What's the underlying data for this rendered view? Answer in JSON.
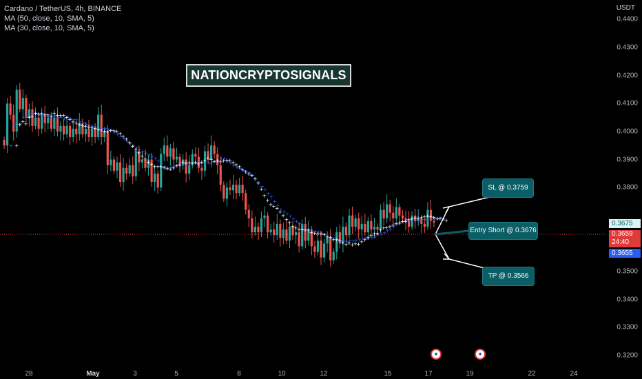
{
  "legend": {
    "title": "Cardano / TetherUS, 4h, BINANCE",
    "ma1": "MA (50, close, 10, SMA, 5)",
    "ma2": "MA (30, close, 10, SMA, 5)"
  },
  "brand": "NATIONCRYPTOSIGNALS",
  "currency": "USDT",
  "y_ticks": [
    "0.4400",
    "0.4300",
    "0.4200",
    "0.4100",
    "0.4000",
    "0.3900",
    "0.3800",
    "0.3600",
    "0.3500",
    "0.3400",
    "0.3300",
    "0.3200"
  ],
  "x_ticks": [
    "28",
    "May",
    "3",
    "5",
    "8",
    "10",
    "12",
    "15",
    "17",
    "19",
    "22",
    "24"
  ],
  "price_badges": {
    "last": "0.3675",
    "current": "0.3659",
    "countdown": "24:40",
    "ma": "0.3655"
  },
  "callouts": {
    "sl": "SL @ 0.3759",
    "entry": "Entry Short @ 0.3676",
    "tp": "TP @ 0.3566"
  },
  "events": [
    "flag-us",
    "flag-us"
  ],
  "colors": {
    "up": "#26a69a",
    "down": "#ef5350",
    "ma_blue": "#2962ff",
    "ma_white": "#ffffff",
    "callout": "#0b5d66"
  },
  "chart_data": {
    "type": "candlestick",
    "symbol": "Cardano / TetherUS, 4h, BINANCE",
    "ylim": [
      0.317,
      0.447
    ],
    "closes": [
      0.395,
      0.41,
      0.406,
      0.4,
      0.415,
      0.408,
      0.412,
      0.405,
      0.408,
      0.402,
      0.405,
      0.401,
      0.406,
      0.403,
      0.405,
      0.401,
      0.405,
      0.4,
      0.402,
      0.399,
      0.402,
      0.398,
      0.401,
      0.399,
      0.403,
      0.399,
      0.401,
      0.398,
      0.401,
      0.398,
      0.406,
      0.398,
      0.4,
      0.388,
      0.39,
      0.386,
      0.389,
      0.382,
      0.387,
      0.385,
      0.388,
      0.384,
      0.393,
      0.389,
      0.39,
      0.387,
      0.39,
      0.382,
      0.385,
      0.38,
      0.392,
      0.395,
      0.391,
      0.394,
      0.39,
      0.391,
      0.388,
      0.39,
      0.385,
      0.388,
      0.392,
      0.391,
      0.387,
      0.386,
      0.393,
      0.39,
      0.395,
      0.392,
      0.388,
      0.381,
      0.376,
      0.38,
      0.379,
      0.381,
      0.378,
      0.381,
      0.378,
      0.372,
      0.369,
      0.364,
      0.366,
      0.364,
      0.369,
      0.37,
      0.364,
      0.365,
      0.363,
      0.367,
      0.362,
      0.365,
      0.361,
      0.366,
      0.363,
      0.364,
      0.359,
      0.367,
      0.361,
      0.365,
      0.359,
      0.357,
      0.361,
      0.355,
      0.36,
      0.362,
      0.354,
      0.357,
      0.364,
      0.36,
      0.366,
      0.363,
      0.37,
      0.366,
      0.369,
      0.365,
      0.367,
      0.364,
      0.368,
      0.365,
      0.366,
      0.365,
      0.372,
      0.369,
      0.374,
      0.371,
      0.369,
      0.373,
      0.37,
      0.369,
      0.368,
      0.366,
      0.37,
      0.368,
      0.369,
      0.367,
      0.366,
      0.372,
      0.368,
      0.3675
    ]
  }
}
